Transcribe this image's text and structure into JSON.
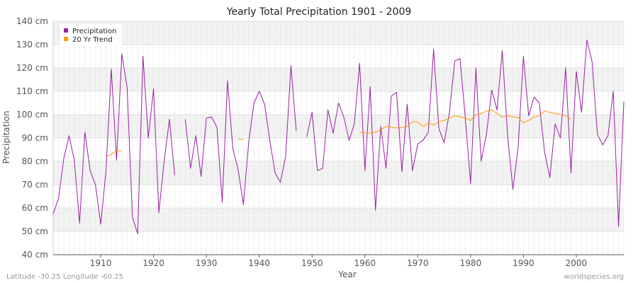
{
  "chart_data": {
    "type": "line",
    "title": "Yearly Total Precipitation 1901 - 2009",
    "xlabel": "Year",
    "ylabel": "Precipitation",
    "xlim": [
      1901,
      2009
    ],
    "ylim": [
      40,
      140
    ],
    "y_ticks": [
      40,
      50,
      60,
      70,
      80,
      90,
      100,
      110,
      120,
      130,
      140
    ],
    "y_tick_labels": [
      "40 cm",
      "50 cm",
      "60 cm",
      "70 cm",
      "80 cm",
      "90 cm",
      "100 cm",
      "110 cm",
      "120 cm",
      "130 cm",
      "140 cm"
    ],
    "x_ticks": [
      1910,
      1920,
      1930,
      1940,
      1950,
      1960,
      1970,
      1980,
      1990,
      2000
    ],
    "x_tick_labels": [
      "1910",
      "1920",
      "1930",
      "1940",
      "1950",
      "1960",
      "1970",
      "1980",
      "1990",
      "2000"
    ],
    "grid": true,
    "legend_position": "top-left",
    "series": [
      {
        "name": "Precipitation",
        "color": "#9b1fa6",
        "x": [
          1901,
          1902,
          1903,
          1904,
          1905,
          1906,
          1907,
          1908,
          1909,
          1910,
          1911,
          1912,
          1913,
          1914,
          1915,
          1916,
          1917,
          1918,
          1919,
          1920,
          1921,
          1922,
          1923,
          1924,
          1925,
          1926,
          1927,
          1928,
          1929,
          1930,
          1931,
          1932,
          1933,
          1934,
          1935,
          1936,
          1937,
          1938,
          1939,
          1940,
          1941,
          1942,
          1943,
          1944,
          1945,
          1946,
          1947,
          1948,
          1949,
          1950,
          1951,
          1952,
          1953,
          1954,
          1955,
          1956,
          1957,
          1958,
          1959,
          1960,
          1961,
          1962,
          1963,
          1964,
          1965,
          1966,
          1967,
          1968,
          1969,
          1970,
          1971,
          1972,
          1973,
          1974,
          1975,
          1976,
          1977,
          1978,
          1979,
          1980,
          1981,
          1982,
          1983,
          1984,
          1985,
          1986,
          1987,
          1988,
          1989,
          1990,
          1991,
          1992,
          1993,
          1994,
          1995,
          1996,
          1997,
          1998,
          1999,
          2000,
          2001,
          2002,
          2003,
          2004,
          2005,
          2006,
          2007,
          2008,
          2009
        ],
        "y": [
          57.5,
          64,
          81,
          91,
          80.5,
          53.5,
          92.5,
          76,
          70,
          53,
          76,
          119.5,
          80.5,
          126,
          111.5,
          56,
          49,
          125,
          90,
          111,
          58,
          80,
          98,
          74,
          null,
          98,
          77,
          91,
          73.5,
          98.5,
          99,
          94.5,
          62.5,
          114.5,
          85.5,
          76.5,
          61.5,
          88,
          105,
          110,
          104.5,
          89,
          75,
          71,
          82,
          121,
          93,
          null,
          90.5,
          101,
          76,
          77,
          102,
          92,
          105,
          99,
          89,
          96,
          122,
          76,
          112,
          59,
          95,
          77,
          108,
          109.5,
          75.5,
          104.5,
          76,
          87.5,
          89,
          92.5,
          128,
          94,
          88,
          101,
          123,
          124,
          98.5,
          70.5,
          120,
          80,
          91.5,
          110.5,
          102,
          127.5,
          91,
          68,
          86,
          125,
          99.5,
          107.5,
          105,
          84,
          73,
          96,
          90,
          120,
          75,
          118.5,
          101,
          132,
          122.5,
          91.5,
          87,
          91,
          110,
          52,
          105.5
        ]
      },
      {
        "name": "20 Yr Trend",
        "color": "#ff9900",
        "x": [
          1911,
          1912,
          1913,
          1914,
          1915,
          1916,
          1917,
          1918,
          1919,
          1920,
          1921,
          1922,
          1923,
          1924,
          1925,
          1926,
          1927,
          1928,
          1929,
          1930,
          1931,
          1932,
          1933,
          1934,
          1935,
          1936,
          1937,
          1938,
          1939,
          1940,
          1941,
          1942,
          1943,
          1944,
          1945,
          1946,
          1947,
          1948,
          1949,
          1950,
          1951,
          1952,
          1953,
          1954,
          1955,
          1956,
          1957,
          1958,
          1959,
          1960,
          1961,
          1962,
          1963,
          1964,
          1965,
          1966,
          1967,
          1968,
          1969,
          1970,
          1971,
          1972,
          1973,
          1974,
          1975,
          1976,
          1977,
          1978,
          1979,
          1980,
          1981,
          1982,
          1983,
          1984,
          1985,
          1986,
          1987,
          1988,
          1989,
          1990,
          1991,
          1992,
          1993,
          1994,
          1995,
          1996,
          1997,
          1998,
          1999
        ],
        "y": [
          82,
          83,
          84.5,
          84.5,
          null,
          null,
          null,
          null,
          null,
          null,
          null,
          null,
          null,
          null,
          null,
          null,
          null,
          null,
          null,
          null,
          null,
          null,
          null,
          null,
          null,
          89.5,
          89.3,
          null,
          null,
          null,
          null,
          null,
          null,
          null,
          null,
          null,
          null,
          null,
          null,
          null,
          null,
          null,
          null,
          null,
          null,
          null,
          null,
          null,
          92.5,
          92.2,
          92,
          92.5,
          93.5,
          95,
          94.6,
          94.3,
          94.4,
          95,
          97,
          96.8,
          94.8,
          96.5,
          95.5,
          97,
          97.5,
          98.5,
          99.5,
          99,
          98.5,
          97.5,
          100,
          100.5,
          101.5,
          102,
          100.5,
          99,
          99.5,
          99,
          98.8,
          96.5,
          97.5,
          99,
          99.5,
          101.5,
          101,
          100.5,
          100,
          99.5,
          98
        ]
      }
    ]
  },
  "footer": {
    "location": "Latitude -30.25 Longitude -60.25",
    "source": "worldspecies.org"
  }
}
